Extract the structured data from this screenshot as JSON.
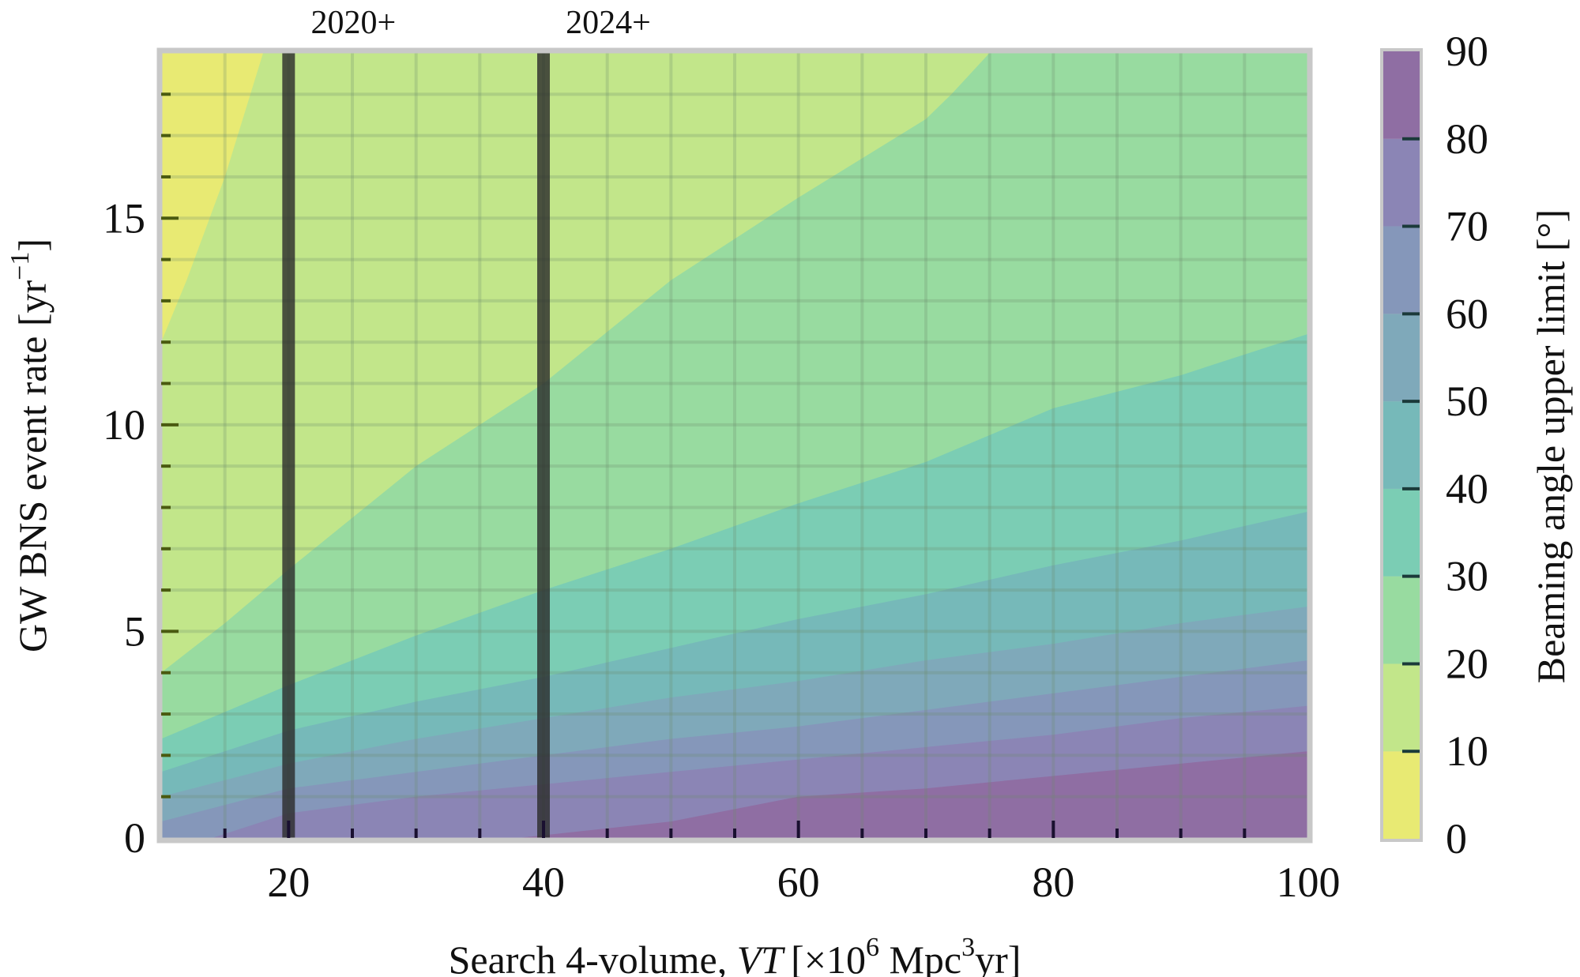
{
  "chart_data": {
    "type": "contourf",
    "xlabel": {
      "prefix": "Search 4-volume, ",
      "var": "VT",
      "unit_a": "[×10",
      "exp_a": "6",
      "unit_b": " Mpc",
      "exp_b": "3",
      "unit_c": "yr]"
    },
    "ylabel": {
      "main": "GW BNS event rate [yr",
      "exp": "−1",
      "end": "]"
    },
    "colorbar_label": "Beaming angle upper limit [°]",
    "xlim": [
      10,
      100
    ],
    "ylim": [
      0,
      19
    ],
    "xticks": [
      "20",
      "40",
      "60",
      "80",
      "100"
    ],
    "xtick_values": [
      20,
      40,
      60,
      80,
      100
    ],
    "yticks": [
      "0",
      "5",
      "10",
      "15"
    ],
    "ytick_values": [
      0,
      5,
      10,
      15
    ],
    "grid": true,
    "levels": [
      0,
      10,
      20,
      30,
      40,
      50,
      60,
      70,
      80,
      90
    ],
    "colorbar_ticks": [
      "0",
      "10",
      "20",
      "30",
      "40",
      "50",
      "60",
      "70",
      "80",
      "90"
    ],
    "band_colors": [
      "#e8ea73",
      "#c2e68a",
      "#98dba0",
      "#7bcdb4",
      "#76b9b9",
      "#7fa9ba",
      "#8597ba",
      "#8b85b5",
      "#8f6ea3"
    ],
    "contour_lines": [
      {
        "level": 80,
        "points": [
          [
            38,
            0
          ],
          [
            50,
            0.4
          ],
          [
            60,
            1.0
          ],
          [
            70,
            1.2
          ],
          [
            80,
            1.5
          ],
          [
            90,
            1.8
          ],
          [
            100,
            2.1
          ]
        ]
      },
      {
        "level": 70,
        "points": [
          [
            14,
            0
          ],
          [
            20,
            0.6
          ],
          [
            30,
            1.0
          ],
          [
            40,
            1.3
          ],
          [
            50,
            1.6
          ],
          [
            60,
            1.9
          ],
          [
            70,
            2.2
          ],
          [
            80,
            2.5
          ],
          [
            90,
            2.9
          ],
          [
            100,
            3.2
          ]
        ]
      },
      {
        "level": 60,
        "points": [
          [
            10,
            0.4
          ],
          [
            20,
            1.2
          ],
          [
            30,
            1.6
          ],
          [
            40,
            2.0
          ],
          [
            50,
            2.4
          ],
          [
            60,
            2.7
          ],
          [
            70,
            3.1
          ],
          [
            80,
            3.5
          ],
          [
            90,
            3.9
          ],
          [
            100,
            4.3
          ]
        ]
      },
      {
        "level": 50,
        "points": [
          [
            10,
            1.0
          ],
          [
            20,
            1.8
          ],
          [
            30,
            2.4
          ],
          [
            40,
            2.9
          ],
          [
            50,
            3.4
          ],
          [
            60,
            3.8
          ],
          [
            70,
            4.3
          ],
          [
            80,
            4.7
          ],
          [
            90,
            5.2
          ],
          [
            100,
            5.6
          ]
        ]
      },
      {
        "level": 40,
        "points": [
          [
            10,
            1.6
          ],
          [
            20,
            2.6
          ],
          [
            30,
            3.3
          ],
          [
            40,
            3.9
          ],
          [
            50,
            4.6
          ],
          [
            60,
            5.3
          ],
          [
            70,
            5.9
          ],
          [
            80,
            6.6
          ],
          [
            90,
            7.2
          ],
          [
            100,
            7.9
          ]
        ]
      },
      {
        "level": 30,
        "points": [
          [
            10,
            2.4
          ],
          [
            20,
            3.7
          ],
          [
            30,
            4.9
          ],
          [
            40,
            6.0
          ],
          [
            50,
            7.0
          ],
          [
            60,
            8.1
          ],
          [
            70,
            9.1
          ],
          [
            80,
            10.4
          ],
          [
            90,
            11.2
          ],
          [
            100,
            12.2
          ]
        ]
      },
      {
        "level": 20,
        "points": [
          [
            10,
            4.0
          ],
          [
            15,
            5.2
          ],
          [
            20,
            6.5
          ],
          [
            30,
            9.0
          ],
          [
            40,
            11.0
          ],
          [
            50,
            13.5
          ],
          [
            60,
            15.5
          ],
          [
            70,
            17.4
          ],
          [
            72,
            18.0
          ],
          [
            75,
            19
          ]
        ]
      },
      {
        "level": 10,
        "points": [
          [
            10,
            12.0
          ],
          [
            12,
            13.5
          ],
          [
            15,
            16.0
          ],
          [
            18,
            19
          ]
        ]
      }
    ],
    "annotations": [
      {
        "x": 20,
        "label": "2020+"
      },
      {
        "x": 40,
        "label": "2024+"
      }
    ]
  }
}
